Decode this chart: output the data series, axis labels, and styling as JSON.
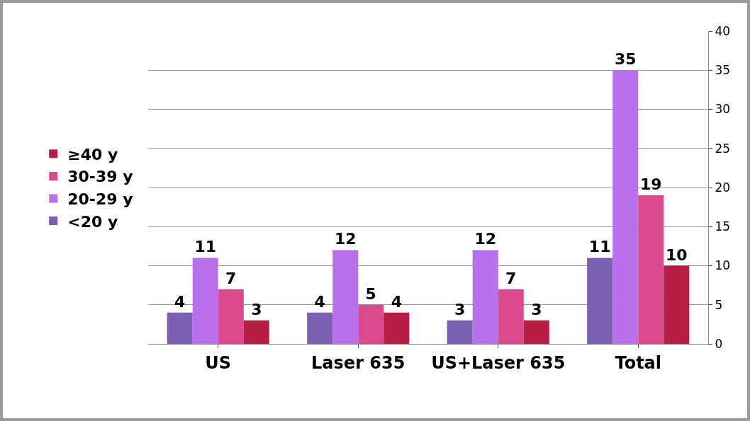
{
  "chart_data": {
    "type": "bar",
    "categories": [
      "US",
      "Laser 635",
      "US+Laser 635",
      "Total"
    ],
    "series": [
      {
        "name": "<20 y",
        "color": "#7b5fb0",
        "values": [
          4,
          4,
          3,
          11
        ]
      },
      {
        "name": "20-29 y",
        "color": "#b871ea",
        "values": [
          11,
          12,
          12,
          35
        ]
      },
      {
        "name": "30-39 y",
        "color": "#dc4a8e",
        "values": [
          7,
          5,
          7,
          19
        ]
      },
      {
        "name": "≥40 y",
        "color": "#b81e45",
        "values": [
          3,
          4,
          3,
          10
        ]
      }
    ],
    "ylim": [
      0,
      40
    ],
    "yticks": [
      0,
      5,
      10,
      15,
      20,
      25,
      30,
      35,
      40
    ],
    "grid": "y",
    "legend": "left",
    "data_labels": true
  }
}
